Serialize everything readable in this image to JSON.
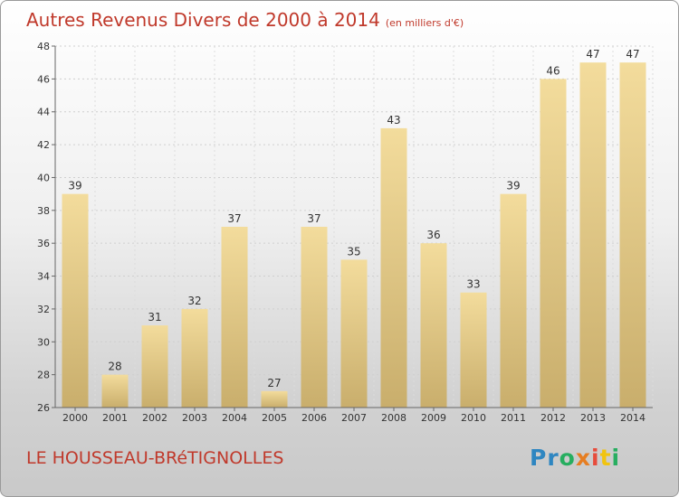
{
  "header": {
    "title": "Autres Revenus Divers de 2000 à 2014",
    "unit": "(en milliers d'€)"
  },
  "footer": {
    "location": "LE HOUSSEAU-BRéTIGNOLLES",
    "logo_letters": [
      "P",
      "r",
      "o",
      "x",
      "i",
      "t",
      "i"
    ],
    "logo_colors": [
      "#2e86c1",
      "#2e86c1",
      "#27ae60",
      "#e67e22",
      "#e74c3c",
      "#f1c40f",
      "#27ae60"
    ]
  },
  "colors": {
    "bar_light": "#f3dc9c",
    "bar_dark": "#c9ae6c",
    "title": "#c0392b"
  },
  "chart_data": {
    "type": "bar",
    "title": "Autres Revenus Divers de 2000 à 2014",
    "xlabel": "",
    "ylabel": "",
    "categories": [
      "2000",
      "2001",
      "2002",
      "2003",
      "2004",
      "2005",
      "2006",
      "2007",
      "2008",
      "2009",
      "2010",
      "2011",
      "2012",
      "2013",
      "2014"
    ],
    "values": [
      39,
      28,
      31,
      32,
      37,
      27,
      37,
      35,
      43,
      36,
      33,
      39,
      46,
      47,
      47
    ],
    "ylim": [
      26,
      48
    ],
    "yticks": [
      26,
      28,
      30,
      32,
      34,
      36,
      38,
      40,
      42,
      44,
      46,
      48
    ],
    "grid": true
  }
}
